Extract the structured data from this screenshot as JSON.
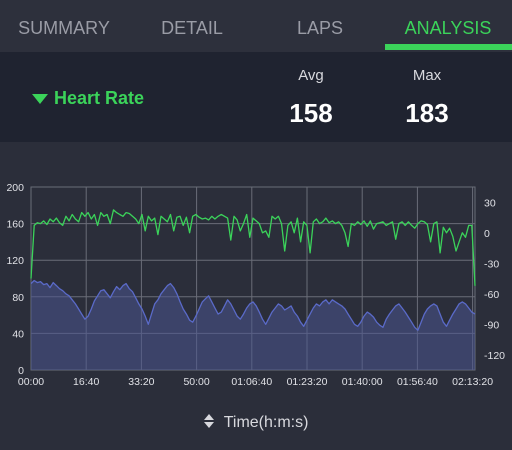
{
  "tabs": [
    {
      "label": "SUMMARY",
      "active": false
    },
    {
      "label": "DETAIL",
      "active": false
    },
    {
      "label": "LAPS",
      "active": false
    },
    {
      "label": "ANALYSIS",
      "active": true
    }
  ],
  "colors": {
    "accent": "#3bd35a",
    "background": "#2b2e3a",
    "panel": "#1f2330",
    "hr_line": "#3bd35a",
    "alt_line": "#5a6ac8",
    "alt_fill": "#4a5590"
  },
  "summary": {
    "metric": "Heart Rate",
    "avg_label": "Avg",
    "avg_value": "158",
    "max_label": "Max",
    "max_value": "183"
  },
  "x_axis_toggle": {
    "label": "Time(h:m:s)",
    "icon": "up-down-arrows-icon"
  },
  "chart_data": {
    "type": "line",
    "x_ticks": [
      "00:00",
      "16:40",
      "33:20",
      "50:00",
      "01:06:40",
      "01:23:20",
      "01:40:00",
      "01:56:40",
      "02:13:20"
    ],
    "x_range_seconds": [
      0,
      8800
    ],
    "left_axis": {
      "ticks": [
        0,
        40,
        80,
        120,
        160,
        200
      ],
      "ylim": [
        0,
        200
      ]
    },
    "right_axis": {
      "ticks": [
        30,
        0,
        -30,
        -60,
        -90,
        -120
      ],
      "ylim": [
        -135,
        45
      ]
    },
    "grid": true,
    "series": [
      {
        "axis": "left",
        "color": "#3bd35a",
        "values": [
          100,
          158,
          161,
          160,
          163,
          159,
          165,
          162,
          166,
          161,
          158,
          168,
          163,
          170,
          165,
          162,
          172,
          168,
          172,
          165,
          170,
          158,
          172,
          168,
          170,
          160,
          175,
          172,
          170,
          168,
          172,
          171,
          168,
          165,
          160,
          170,
          152,
          168,
          163,
          166,
          148,
          168,
          165,
          162,
          170,
          152,
          167,
          168,
          158,
          167,
          150,
          168,
          170,
          167,
          165,
          166,
          164,
          168,
          165,
          168,
          170,
          168,
          166,
          142,
          168,
          164,
          152,
          160,
          170,
          145,
          166,
          163,
          160,
          150,
          152,
          145,
          168,
          165,
          168,
          160,
          130,
          158,
          162,
          150,
          166,
          140,
          162,
          158,
          128,
          162,
          165,
          160,
          162,
          166,
          161,
          163,
          160,
          162,
          158,
          150,
          135,
          160,
          158,
          162,
          159,
          163,
          157,
          163,
          154,
          160,
          161,
          162,
          158,
          160,
          162,
          143,
          160,
          162,
          158,
          162,
          158,
          155,
          160,
          163,
          162,
          159,
          140,
          160,
          162,
          128,
          156,
          150,
          155,
          146,
          130,
          140,
          150,
          145,
          158,
          158,
          92
        ]
      },
      {
        "axis": "right",
        "color": "#5a6ac8",
        "values": [
          -50,
          -47,
          -49,
          -48,
          -51,
          -50,
          -54,
          -49,
          -52,
          -55,
          -57,
          -60,
          -62,
          -66,
          -70,
          -75,
          -80,
          -85,
          -82,
          -75,
          -67,
          -62,
          -57,
          -56,
          -60,
          -64,
          -58,
          -53,
          -56,
          -52,
          -50,
          -55,
          -58,
          -64,
          -70,
          -75,
          -82,
          -90,
          -80,
          -70,
          -66,
          -60,
          -56,
          -52,
          -50,
          -54,
          -60,
          -68,
          -75,
          -80,
          -86,
          -88,
          -82,
          -75,
          -68,
          -65,
          -62,
          -68,
          -74,
          -80,
          -78,
          -72,
          -66,
          -70,
          -76,
          -82,
          -85,
          -80,
          -74,
          -70,
          -68,
          -72,
          -78,
          -85,
          -90,
          -84,
          -78,
          -74,
          -70,
          -72,
          -76,
          -74,
          -72,
          -78,
          -82,
          -88,
          -92,
          -86,
          -80,
          -74,
          -70,
          -72,
          -68,
          -66,
          -70,
          -66,
          -68,
          -70,
          -72,
          -75,
          -80,
          -85,
          -90,
          -92,
          -88,
          -82,
          -78,
          -80,
          -83,
          -88,
          -91,
          -93,
          -85,
          -80,
          -76,
          -72,
          -70,
          -74,
          -78,
          -83,
          -88,
          -93,
          -96,
          -88,
          -80,
          -75,
          -72,
          -70,
          -72,
          -80,
          -88,
          -92,
          -86,
          -80,
          -75,
          -70,
          -68,
          -70,
          -74,
          -78,
          -80
        ]
      }
    ]
  }
}
